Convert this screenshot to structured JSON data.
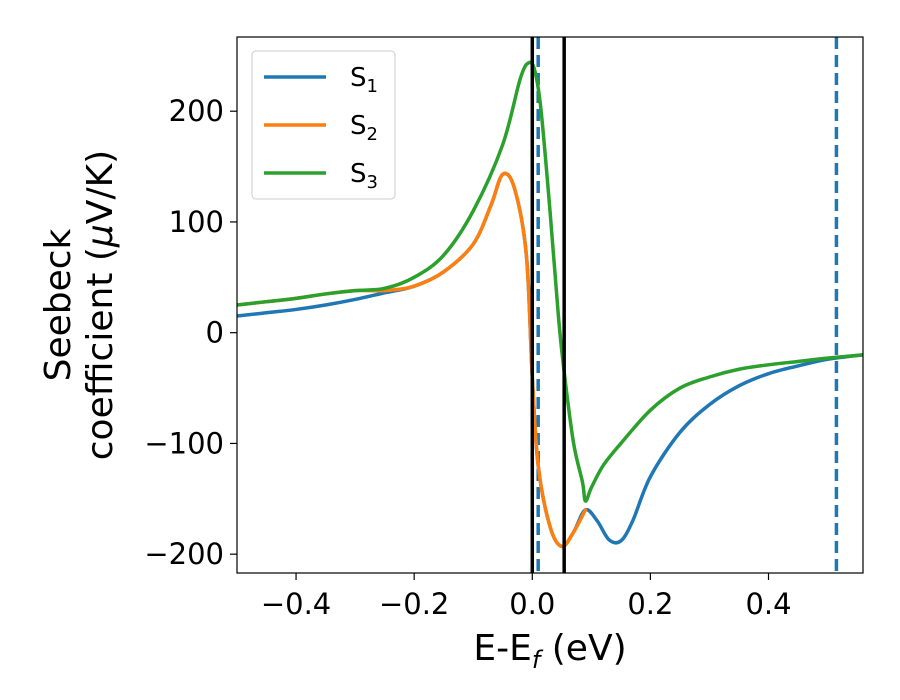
{
  "chart_data": {
    "type": "line",
    "xlabel": "E-E",
    "xlabel_sub": "f",
    "xlabel_unit": " (eV)",
    "ylabel_line1": "Seebeck",
    "ylabel_line2": "coefficient  (",
    "ylabel_mu": "μ",
    "ylabel_unit": "V/K)",
    "xlim": [
      -0.5,
      0.56
    ],
    "ylim": [
      -217,
      267
    ],
    "xticks": [
      -0.4,
      -0.2,
      0.0,
      0.2,
      0.4
    ],
    "xtick_labels": [
      "−0.4",
      "−0.2",
      "0.0",
      "0.2",
      "0.4"
    ],
    "yticks": [
      -200,
      -100,
      0,
      100,
      200
    ],
    "ytick_labels": [
      "−200",
      "−100",
      "0",
      "100",
      "200"
    ],
    "grid": false,
    "legend_position": "top-left",
    "colors": {
      "S1": "#1f77b4",
      "S2": "#ff7f0e",
      "S3": "#2ca02c",
      "vline": "#000000"
    },
    "series": [
      {
        "name": "S",
        "sub": "1",
        "color": "#1f77b4",
        "points": [
          [
            -0.5,
            15
          ],
          [
            -0.45,
            18
          ],
          [
            -0.4,
            21
          ],
          [
            -0.35,
            25
          ],
          [
            -0.3,
            30
          ],
          [
            -0.25,
            36
          ],
          [
            -0.2,
            42
          ],
          [
            -0.15,
            55
          ],
          [
            -0.1,
            80
          ],
          [
            -0.07,
            115
          ],
          [
            -0.05,
            143
          ],
          [
            -0.03,
            130
          ],
          [
            -0.01,
            70
          ],
          [
            0.0,
            -40
          ],
          [
            0.01,
            -120
          ],
          [
            0.03,
            -175
          ],
          [
            0.05,
            -193
          ],
          [
            0.07,
            -180
          ],
          [
            0.09,
            -160
          ],
          [
            0.11,
            -170
          ],
          [
            0.13,
            -187
          ],
          [
            0.15,
            -188
          ],
          [
            0.17,
            -170
          ],
          [
            0.2,
            -130
          ],
          [
            0.25,
            -90
          ],
          [
            0.3,
            -65
          ],
          [
            0.35,
            -48
          ],
          [
            0.4,
            -37
          ],
          [
            0.45,
            -30
          ],
          [
            0.5,
            -24
          ],
          [
            0.56,
            -20
          ]
        ]
      },
      {
        "name": "S",
        "sub": "2",
        "color": "#ff7f0e",
        "points": [
          [
            -0.5,
            25
          ],
          [
            -0.45,
            28
          ],
          [
            -0.4,
            31
          ],
          [
            -0.35,
            35
          ],
          [
            -0.3,
            38
          ],
          [
            -0.25,
            38
          ],
          [
            -0.2,
            42
          ],
          [
            -0.15,
            55
          ],
          [
            -0.1,
            80
          ],
          [
            -0.07,
            115
          ],
          [
            -0.05,
            143
          ],
          [
            -0.03,
            130
          ],
          [
            -0.01,
            70
          ],
          [
            0.0,
            -40
          ],
          [
            0.01,
            -120
          ],
          [
            0.03,
            -175
          ],
          [
            0.05,
            -193
          ],
          [
            0.07,
            -180
          ],
          [
            0.09,
            -160
          ]
        ]
      },
      {
        "name": "S",
        "sub": "3",
        "color": "#2ca02c",
        "points": [
          [
            -0.5,
            25
          ],
          [
            -0.45,
            28
          ],
          [
            -0.4,
            31
          ],
          [
            -0.35,
            35
          ],
          [
            -0.3,
            38
          ],
          [
            -0.25,
            40
          ],
          [
            -0.2,
            50
          ],
          [
            -0.15,
            70
          ],
          [
            -0.1,
            110
          ],
          [
            -0.05,
            170
          ],
          [
            -0.02,
            230
          ],
          [
            -0.005,
            244
          ],
          [
            0.005,
            235
          ],
          [
            0.015,
            200
          ],
          [
            0.03,
            110
          ],
          [
            0.045,
            10
          ],
          [
            0.055,
            -40
          ],
          [
            0.07,
            -100
          ],
          [
            0.085,
            -135
          ],
          [
            0.09,
            -152
          ],
          [
            0.1,
            -140
          ],
          [
            0.12,
            -120
          ],
          [
            0.15,
            -100
          ],
          [
            0.2,
            -70
          ],
          [
            0.25,
            -50
          ],
          [
            0.3,
            -40
          ],
          [
            0.35,
            -33
          ],
          [
            0.4,
            -29
          ],
          [
            0.45,
            -26
          ],
          [
            0.5,
            -23
          ],
          [
            0.56,
            -20
          ]
        ]
      }
    ],
    "vlines_solid": [
      0.0,
      0.054
    ],
    "vlines_dashed": [
      0.01,
      0.515
    ]
  }
}
